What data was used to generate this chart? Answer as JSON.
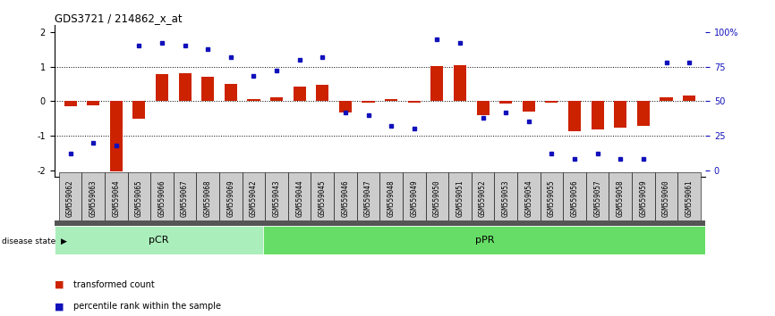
{
  "title": "GDS3721 / 214862_x_at",
  "samples": [
    "GSM559062",
    "GSM559063",
    "GSM559064",
    "GSM559065",
    "GSM559066",
    "GSM559067",
    "GSM559068",
    "GSM559069",
    "GSM559042",
    "GSM559043",
    "GSM559044",
    "GSM559045",
    "GSM559046",
    "GSM559047",
    "GSM559048",
    "GSM559049",
    "GSM559050",
    "GSM559051",
    "GSM559052",
    "GSM559053",
    "GSM559054",
    "GSM559055",
    "GSM559056",
    "GSM559057",
    "GSM559058",
    "GSM559059",
    "GSM559060",
    "GSM559061"
  ],
  "red_bars": [
    -0.15,
    -0.12,
    -2.05,
    -0.5,
    0.78,
    0.82,
    0.7,
    0.5,
    0.05,
    0.12,
    0.42,
    0.48,
    -0.32,
    -0.05,
    0.05,
    -0.05,
    1.02,
    1.05,
    -0.4,
    -0.08,
    -0.3,
    -0.05,
    -0.88,
    -0.82,
    -0.78,
    -0.72,
    0.12,
    0.15
  ],
  "blue_pct": [
    12,
    20,
    18,
    90,
    92,
    90,
    88,
    82,
    68,
    72,
    80,
    82,
    42,
    40,
    32,
    30,
    95,
    92,
    38,
    42,
    35,
    12,
    8,
    12,
    8,
    8,
    78,
    78
  ],
  "pCR_count": 9,
  "pPR_count": 19,
  "ylim_left": [
    -2.2,
    2.2
  ],
  "yticks_left": [
    -2,
    -1,
    0,
    1,
    2
  ],
  "yticks_right_pct": [
    0,
    25,
    50,
    75,
    100
  ],
  "bar_color": "#CC2200",
  "dot_color": "#1111BB",
  "pCR_facecolor": "#AAEEBB",
  "pPR_facecolor": "#66DD66",
  "label_box_color": "#CCCCCC",
  "disease_bar_color": "#555555",
  "legend_red_label": "transformed count",
  "legend_blue_label": "percentile rank within the sample",
  "background_color": "#FFFFFF"
}
